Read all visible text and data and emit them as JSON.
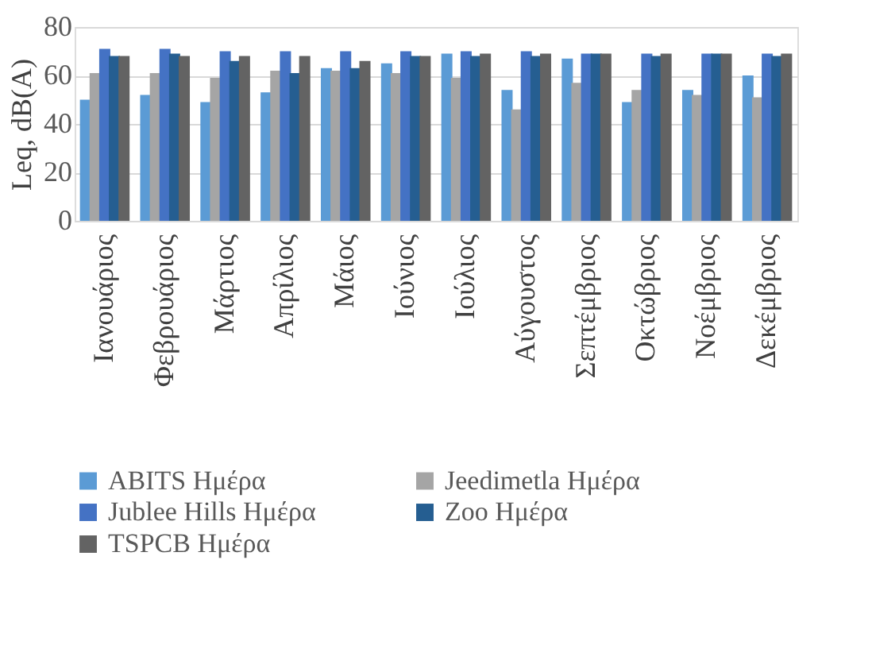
{
  "chart_data": {
    "type": "bar",
    "ylabel": "Leq, dB(A)",
    "categories": [
      "Ιανουάριος",
      "Φεβρουάριος",
      "Μάρτιος",
      "Απρίλιος",
      "Μάιος",
      "Ιούνιος",
      "Ιούλιος",
      "Αύγουστος",
      "Σεπτέμβριος",
      "Οκτώβριος",
      "Νοέμβριος",
      "Δεκέμβριος"
    ],
    "series": [
      {
        "name": "ABITS Ημέρα",
        "color": "#5b9bd5",
        "values": [
          50,
          52,
          49,
          53,
          63,
          65,
          69,
          54,
          67,
          49,
          54,
          60
        ]
      },
      {
        "name": "Jeedimetla Ημέρα",
        "color": "#a5a5a5",
        "values": [
          61,
          61,
          59,
          62,
          62,
          61,
          59,
          46,
          57,
          54,
          52,
          51
        ]
      },
      {
        "name": "Jublee Hills Ημέρα",
        "color": "#4472c4",
        "values": [
          71,
          71,
          70,
          70,
          70,
          70,
          70,
          70,
          69,
          69,
          69,
          69
        ]
      },
      {
        "name": "Zoo Ημέρα",
        "color": "#255e91",
        "values": [
          68,
          69,
          66,
          61,
          63,
          68,
          68,
          68,
          69,
          68,
          69,
          68
        ]
      },
      {
        "name": "TSPCB Ημέρα",
        "color": "#636363",
        "values": [
          68,
          68,
          68,
          68,
          66,
          68,
          69,
          69,
          69,
          69,
          69,
          69
        ]
      }
    ],
    "ylim": [
      0,
      80
    ],
    "yticks": [
      0,
      20,
      40,
      60,
      80
    ],
    "grid": "y",
    "legend": "bottom"
  }
}
